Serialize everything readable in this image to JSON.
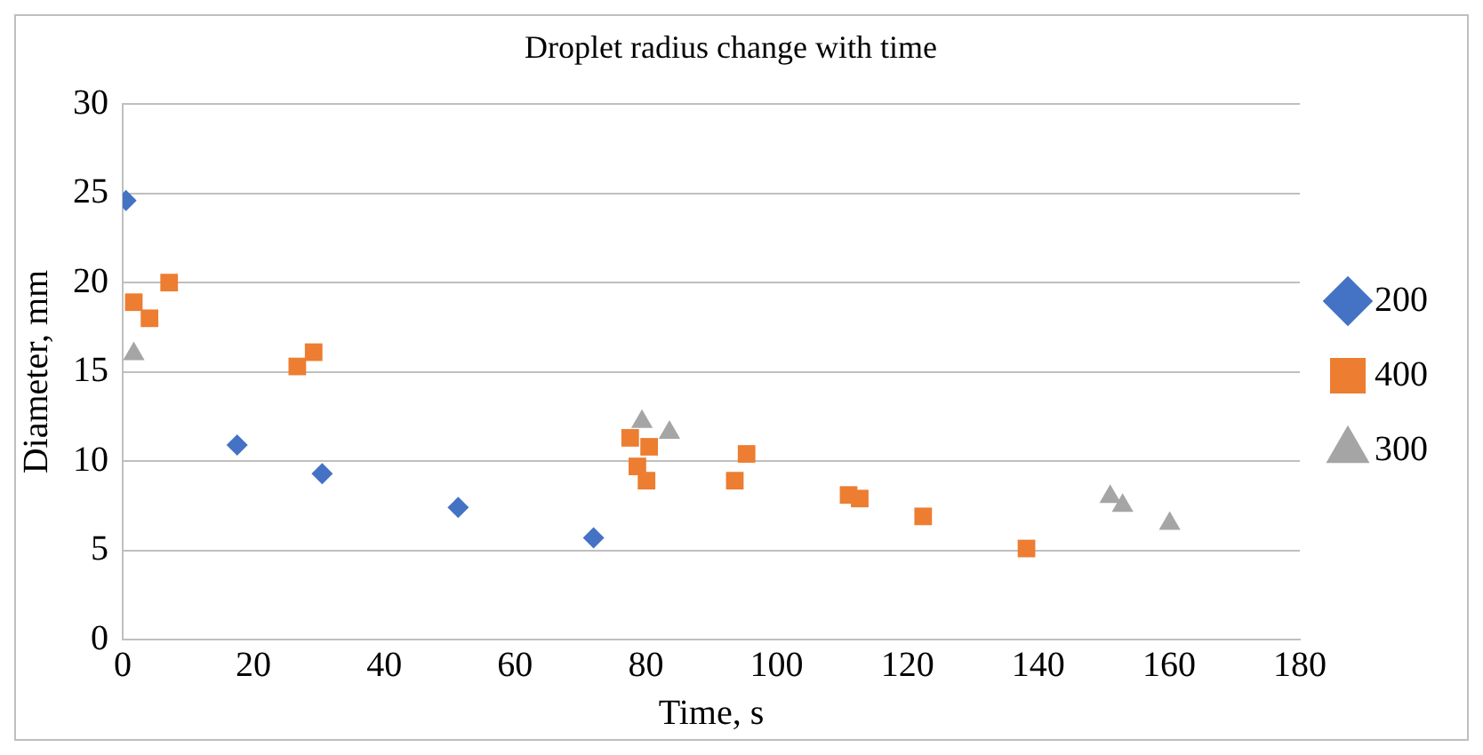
{
  "chart_data": {
    "type": "scatter",
    "title": "Droplet radius change with time",
    "xlabel": "Time, s",
    "ylabel": "Diameter, mm",
    "xlim": [
      0,
      180
    ],
    "xticks": [
      0,
      20,
      40,
      60,
      80,
      100,
      120,
      140,
      160,
      180
    ],
    "ylim": [
      0,
      30
    ],
    "yticks": [
      0,
      5,
      10,
      15,
      20,
      25,
      30
    ],
    "grid": "y",
    "legend": "right",
    "series": [
      {
        "name": "200",
        "color": "#4472c4",
        "marker": "diamond",
        "x": [
          0.5,
          17.5,
          30.5,
          51.3,
          72
        ],
        "values": [
          24.6,
          10.9,
          9.3,
          7.4,
          5.7
        ]
      },
      {
        "name": "400",
        "color": "#ed7d31",
        "marker": "square",
        "x": [
          1.7,
          4.1,
          7.1,
          26.7,
          29.2,
          77.6,
          80.5,
          78.7,
          80.1,
          93.6,
          95.4,
          111,
          112.7,
          122.4,
          138.2
        ],
        "values": [
          18.9,
          18.0,
          20.0,
          15.3,
          16.1,
          11.3,
          10.8,
          9.7,
          8.9,
          8.9,
          10.4,
          8.1,
          7.9,
          6.9,
          5.1
        ]
      },
      {
        "name": "300",
        "color": "#a5a5a5",
        "marker": "triangle",
        "x": [
          1.7,
          79.4,
          83.6,
          151,
          152.9,
          160.1
        ],
        "values": [
          16.0,
          12.2,
          11.6,
          8.0,
          7.5,
          6.5
        ]
      }
    ]
  }
}
